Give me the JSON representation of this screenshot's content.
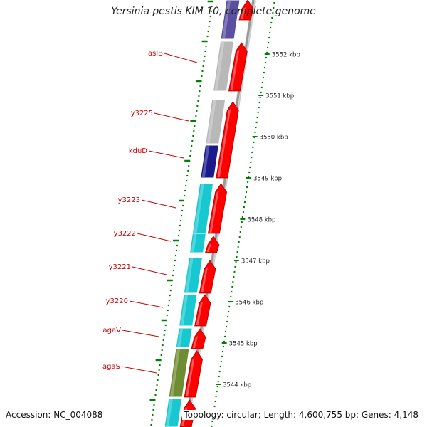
{
  "title": "Yersinia pestis KIM 10, complete genome",
  "footer": {
    "accession": "Accession: NC_004088",
    "topology": "Topology: circular; Length: 4,600,755 bp; Genes: 4,148"
  },
  "colors": {
    "forward_gene": "#ff0000",
    "label": "#cc0000",
    "tick": "#008000",
    "backbone": "#999999",
    "cog_grey": "#b8b8b8",
    "cog_purple": "#5a4fa0",
    "cog_navy": "#1a1a8c",
    "cog_cyan": "#18c8d0",
    "cog_olive": "#6e8c32"
  },
  "gene_labels": [
    {
      "name": "aslB"
    },
    {
      "name": "y3225"
    },
    {
      "name": "kduD"
    },
    {
      "name": "y3223"
    },
    {
      "name": "y3222"
    },
    {
      "name": "y3221"
    },
    {
      "name": "y3220"
    },
    {
      "name": "agaV"
    },
    {
      "name": "agaS"
    }
  ],
  "kbp_ticks": [
    {
      "label": "3552 kbp"
    },
    {
      "label": "3551 kbp"
    },
    {
      "label": "3550 kbp"
    },
    {
      "label": "3549 kbp"
    },
    {
      "label": "3548 kbp"
    },
    {
      "label": "3547 kbp"
    },
    {
      "label": "3546 kbp"
    },
    {
      "label": "3545 kbp"
    },
    {
      "label": "3544 kbp"
    }
  ]
}
